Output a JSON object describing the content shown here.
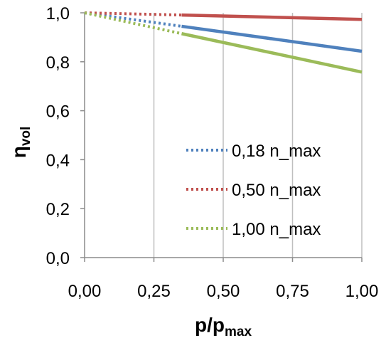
{
  "chart_data": {
    "type": "line",
    "title": "",
    "xlabel": {
      "main": "p/p",
      "sub": "max"
    },
    "ylabel": {
      "main": "η",
      "sub": "vol"
    },
    "xlim": [
      0,
      1
    ],
    "ylim": [
      0,
      1
    ],
    "x_ticks": [
      "0,00",
      "0,25",
      "0,50",
      "0,75",
      "1,00"
    ],
    "y_ticks": [
      "0,0",
      "0,2",
      "0,4",
      "0,6",
      "0,8",
      "1,0"
    ],
    "grid": "vertical",
    "legend_position": "right",
    "series": [
      {
        "name": "0,18 n_max",
        "color": "#4f81bd",
        "dotted": {
          "x": [
            0,
            0.35
          ],
          "y": [
            1.0,
            0.945
          ]
        },
        "solid": {
          "x": [
            0.35,
            1.0
          ],
          "y": [
            0.945,
            0.843
          ]
        }
      },
      {
        "name": "0,50 n_max",
        "color": "#c0504d",
        "dotted": {
          "x": [
            0,
            0.35
          ],
          "y": [
            1.0,
            0.991
          ]
        },
        "solid": {
          "x": [
            0.35,
            1.0
          ],
          "y": [
            0.991,
            0.973
          ]
        }
      },
      {
        "name": "1,00 n_max",
        "color": "#9bbb59",
        "dotted": {
          "x": [
            0,
            0.35
          ],
          "y": [
            1.0,
            0.915
          ]
        },
        "solid": {
          "x": [
            0.35,
            1.0
          ],
          "y": [
            0.915,
            0.758
          ]
        }
      }
    ]
  }
}
